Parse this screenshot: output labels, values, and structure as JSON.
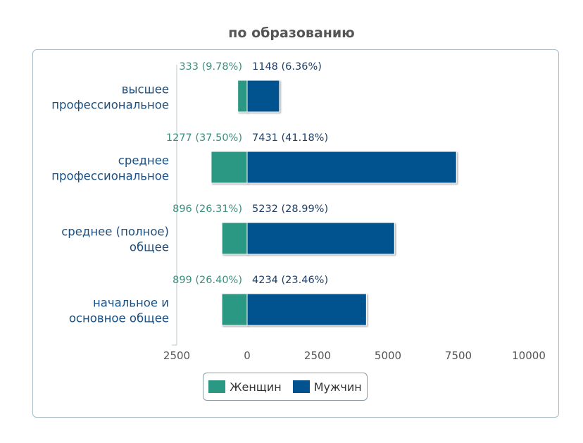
{
  "title": "по образованию",
  "legend": {
    "female_label": "Женщин",
    "male_label": "Мужчин"
  },
  "colors": {
    "female": "#2a9882",
    "male": "#02528f",
    "female_text": "#3a8f7e",
    "male_text": "#1d3f66",
    "category_text": "#1a4f82",
    "tick_text": "#555555"
  },
  "chart_data": {
    "type": "bar",
    "orientation": "horizontal",
    "title": "по образованию",
    "categories": [
      [
        "высшее",
        "профессиональное"
      ],
      [
        "среднее",
        "профессиональное"
      ],
      [
        "среднее (полное)",
        "общее"
      ],
      [
        "начальное и",
        "основное общее"
      ]
    ],
    "series": [
      {
        "name": "Женщин",
        "direction": "negative",
        "values": [
          333,
          1277,
          896,
          899
        ],
        "labels": [
          "333 (9.78%)",
          "1277 (37.50%)",
          "896 (26.31%)",
          "899 (26.40%)"
        ]
      },
      {
        "name": "Мужчин",
        "direction": "positive",
        "values": [
          1148,
          7431,
          5232,
          4234
        ],
        "labels": [
          "1148 (6.36%)",
          "7431 (41.18%)",
          "5232 (28.99%)",
          "4234 (23.46%)"
        ]
      }
    ],
    "xlim": [
      -2500,
      10000
    ],
    "xticks": [
      -2500,
      0,
      2500,
      5000,
      7500,
      10000
    ],
    "xtick_labels": [
      "2500",
      "0",
      "2500",
      "5000",
      "7500",
      "10000"
    ],
    "legend_position": "bottom-center",
    "grid": false
  }
}
